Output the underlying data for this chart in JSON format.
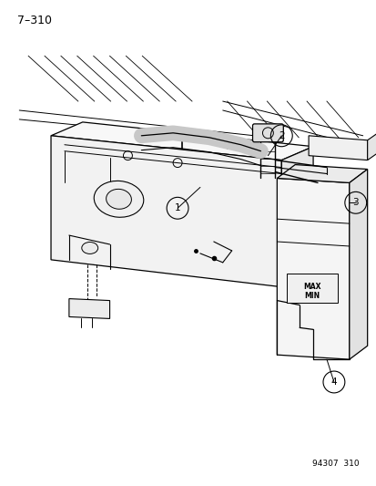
{
  "title": "7–310",
  "footer": "94307  310",
  "bg": "#ffffff",
  "lc": "#000000",
  "figsize": [
    4.14,
    5.33
  ],
  "dpi": 100
}
